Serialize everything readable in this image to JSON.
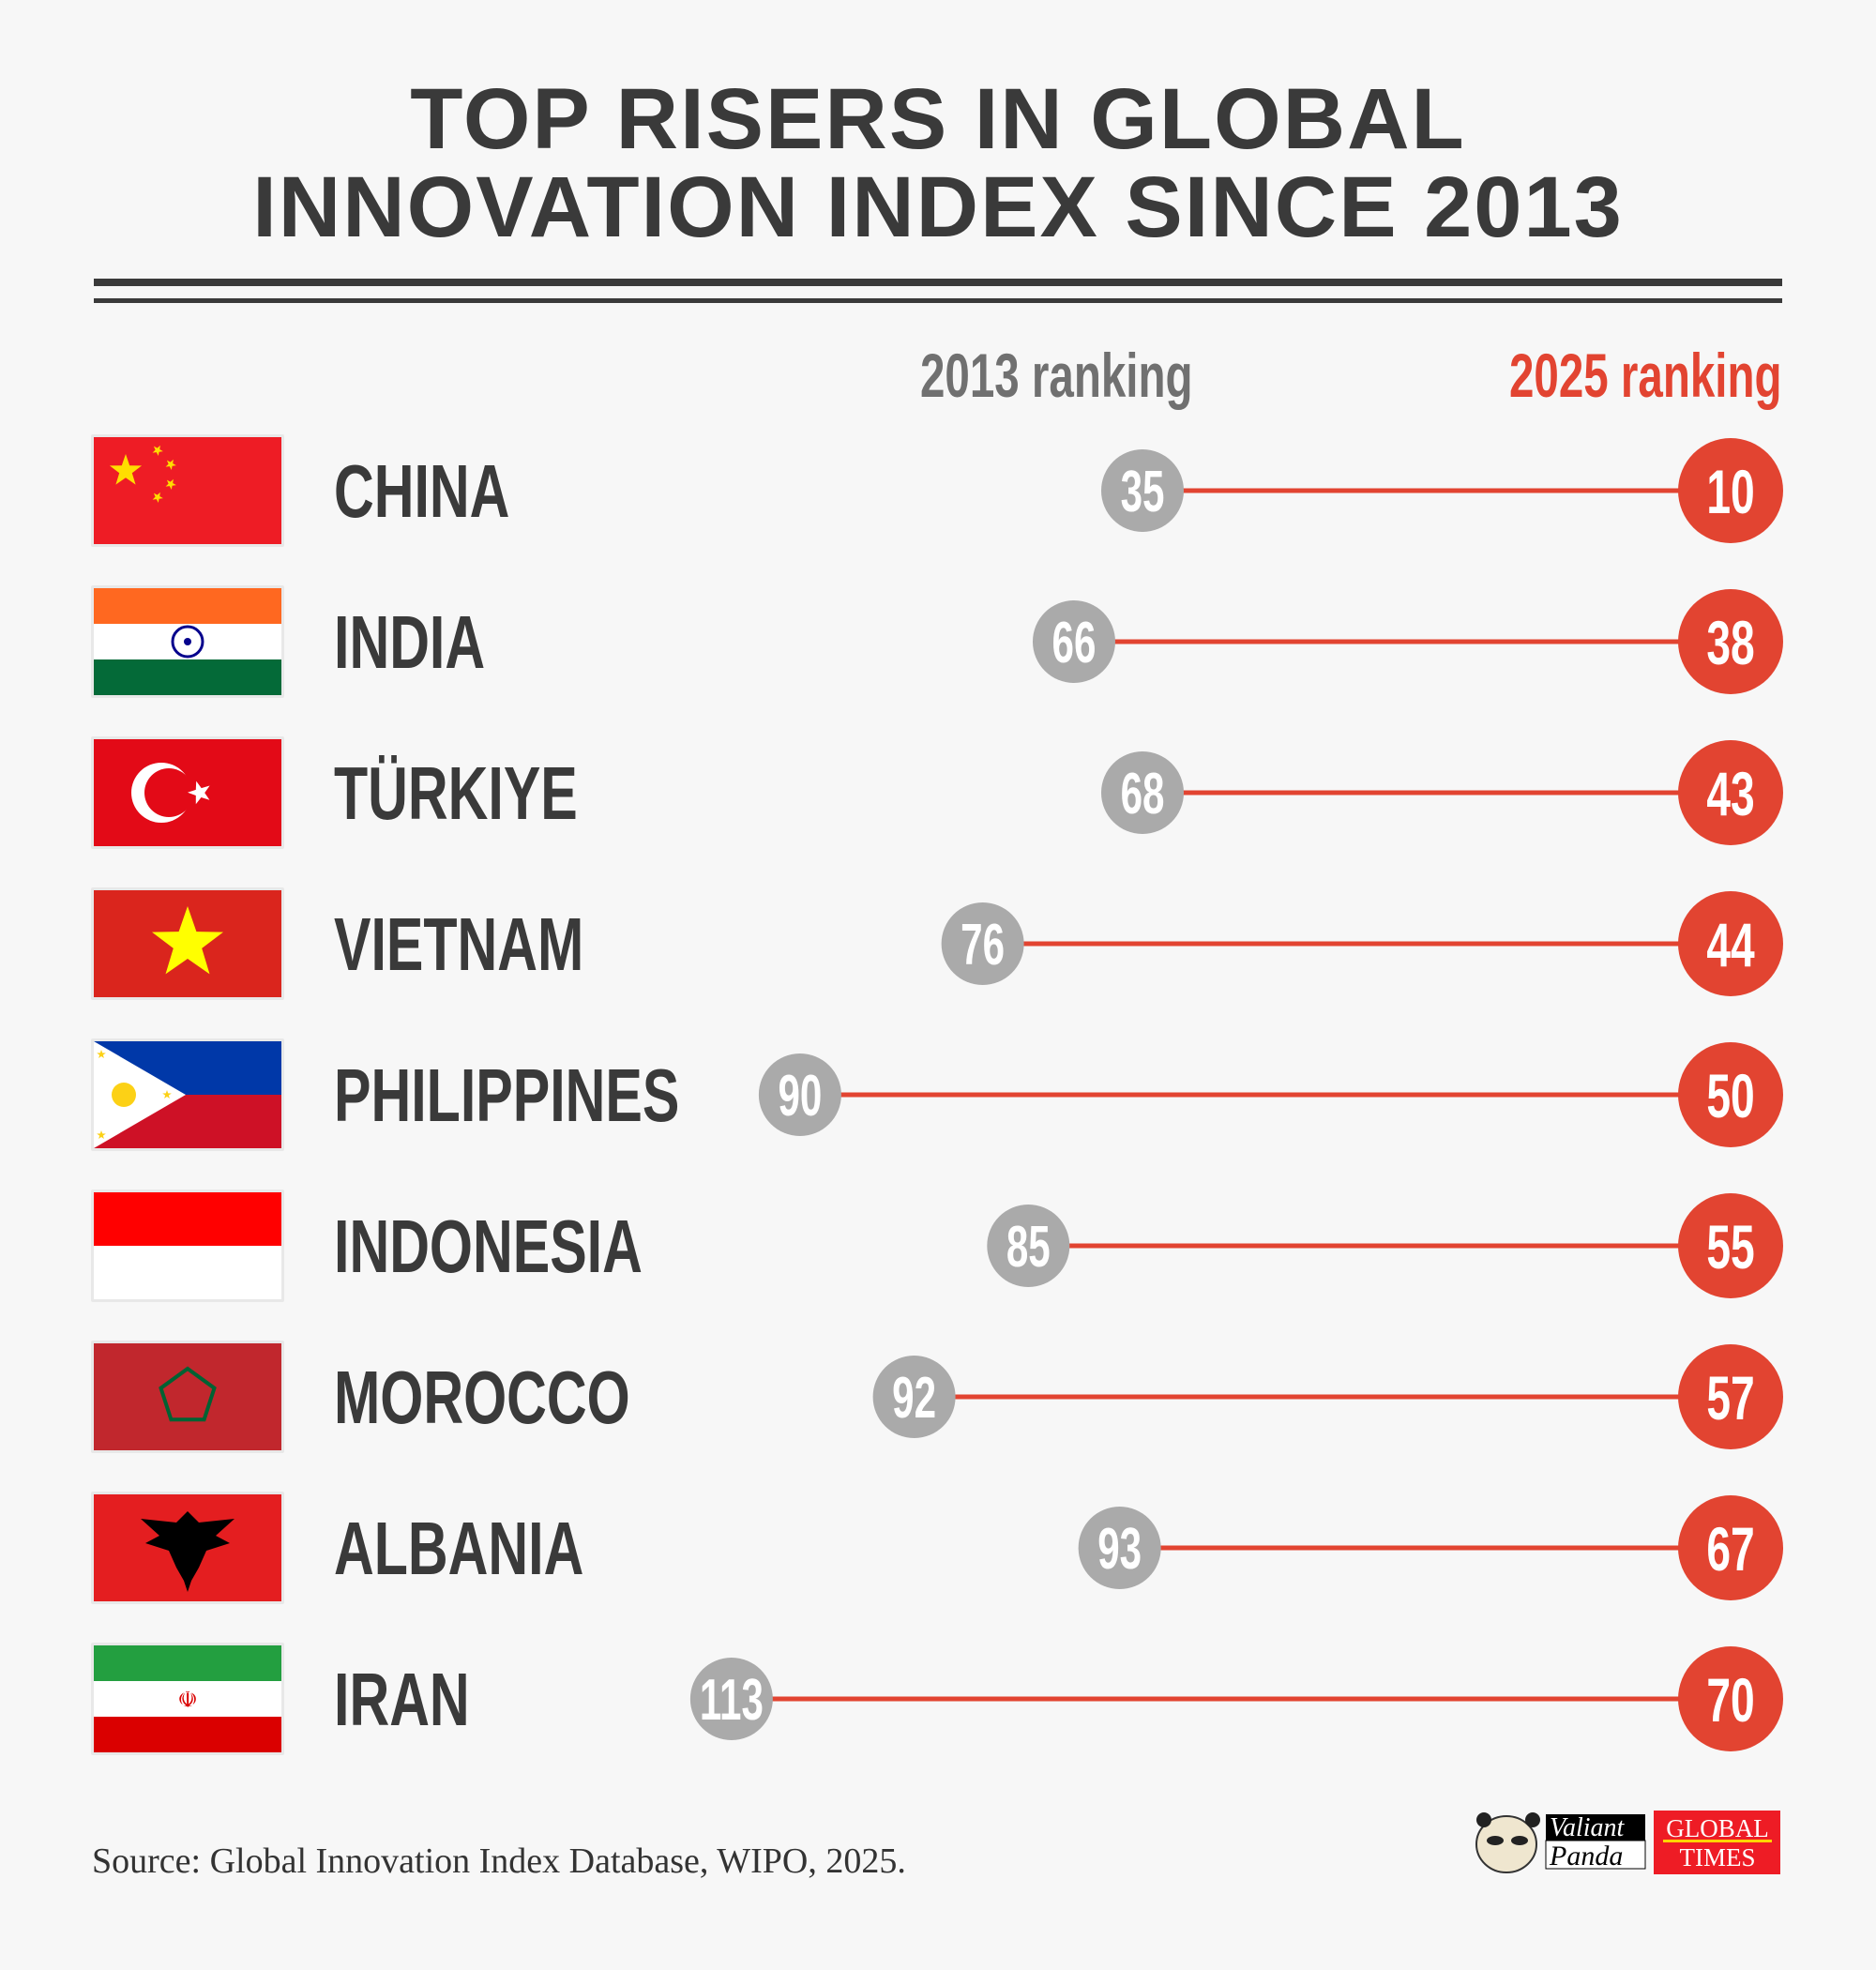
{
  "title": {
    "line1": "TOP RISERS IN GLOBAL",
    "line2": "INNOVATION INDEX SINCE 2013"
  },
  "colors": {
    "text": "#3a3a3a",
    "rank_2013": "#aaaaaa",
    "rank_2025": "#e24431",
    "background": "#f7f7f7"
  },
  "chart_data": {
    "type": "dumbbell",
    "columns": [
      "2013 ranking",
      "2025 ranking"
    ],
    "rows": [
      {
        "country": "CHINA",
        "flag": "china-flag",
        "rank_2013": 35,
        "rank_2025": 10
      },
      {
        "country": "INDIA",
        "flag": "india-flag",
        "rank_2013": 66,
        "rank_2025": 38
      },
      {
        "country": "TÜRKIYE",
        "flag": "turkiye-flag",
        "rank_2013": 68,
        "rank_2025": 43
      },
      {
        "country": "VIETNAM",
        "flag": "vietnam-flag",
        "rank_2013": 76,
        "rank_2025": 44
      },
      {
        "country": "PHILIPPINES",
        "flag": "philippines-flag",
        "rank_2013": 90,
        "rank_2025": 50
      },
      {
        "country": "INDONESIA",
        "flag": "indonesia-flag",
        "rank_2013": 85,
        "rank_2025": 55
      },
      {
        "country": "MOROCCO",
        "flag": "morocco-flag",
        "rank_2013": 92,
        "rank_2025": 57
      },
      {
        "country": "ALBANIA",
        "flag": "albania-flag",
        "rank_2013": 93,
        "rank_2025": 67
      },
      {
        "country": "IRAN",
        "flag": "iran-flag",
        "rank_2013": 113,
        "rank_2025": 70
      }
    ]
  },
  "source": "Source: Global Innovation Index Database, WIPO, 2025.",
  "logos": {
    "valiant_panda": [
      "Valiant",
      "Panda"
    ],
    "global_times": [
      "GLOBAL",
      "TIMES"
    ]
  }
}
